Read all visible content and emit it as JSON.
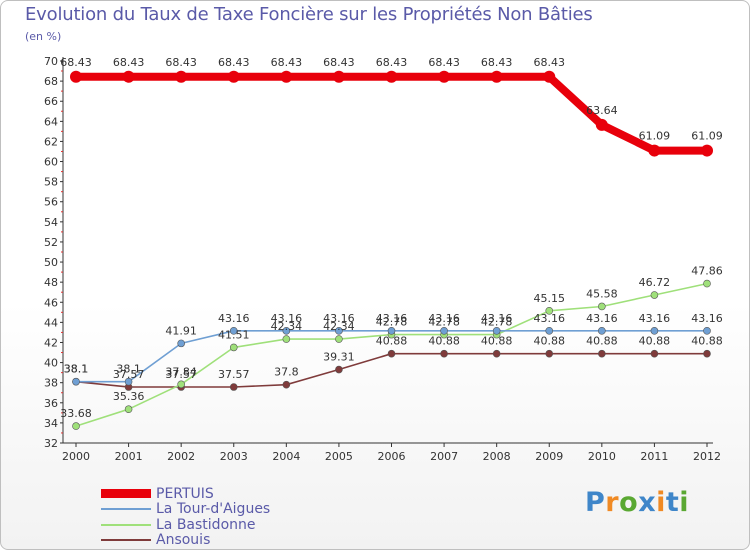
{
  "chart_data": {
    "type": "line",
    "title": "Evolution du Taux de Taxe Foncière sur les Propriétés Non Bâties",
    "subtitle": "(en %)",
    "x": [
      "2000",
      "2001",
      "2002",
      "2003",
      "2004",
      "2005",
      "2006",
      "2007",
      "2008",
      "2009",
      "2010",
      "2011",
      "2012"
    ],
    "ylim": [
      32,
      70
    ],
    "yticks": [
      32,
      34,
      36,
      38,
      40,
      42,
      44,
      46,
      48,
      50,
      52,
      54,
      56,
      58,
      60,
      62,
      64,
      66,
      68,
      70
    ],
    "grid": false,
    "legend_position": "bottom-left",
    "series": [
      {
        "name": "PERTUIS",
        "color": "#e8000b",
        "values": [
          68.43,
          68.43,
          68.43,
          68.43,
          68.43,
          68.43,
          68.43,
          68.43,
          68.43,
          68.43,
          63.64,
          61.09,
          61.09
        ],
        "labels": [
          "68.43",
          "68.43",
          "68.43",
          "68.43",
          "68.43",
          "68.43",
          "68.43",
          "68.43",
          "68.43",
          "68.43",
          "63.64",
          "61.09",
          "61.09"
        ]
      },
      {
        "name": "La Tour-d'Aigues",
        "color": "#6f9fd3",
        "values": [
          38.1,
          38.1,
          41.91,
          43.16,
          43.16,
          43.16,
          43.16,
          43.16,
          43.16,
          43.16,
          43.16,
          43.16,
          43.16
        ],
        "labels": [
          "38.1",
          "38.1",
          "41.91",
          "43.16",
          "43.16",
          "43.16",
          "43.16",
          "43.16",
          "43.16",
          "43.16",
          "43.16",
          "43.16",
          "43.16"
        ]
      },
      {
        "name": "La Bastidonne",
        "color": "#9fe07a",
        "values": [
          33.68,
          35.36,
          37.84,
          41.51,
          42.34,
          42.34,
          42.78,
          42.78,
          42.78,
          45.15,
          45.58,
          46.72,
          47.86
        ],
        "labels": [
          "33.68",
          "35.36",
          "37.84",
          "41.51",
          "42.34",
          "42.34",
          "42.78",
          "42.78",
          "42.78",
          "45.15",
          "45.58",
          "46.72",
          "47.86"
        ]
      },
      {
        "name": "Ansouis",
        "color": "#7f3b3b",
        "values": [
          38.1,
          37.57,
          37.57,
          37.57,
          37.8,
          39.31,
          40.88,
          40.88,
          40.88,
          40.88,
          40.88,
          40.88,
          40.88
        ],
        "labels": [
          "38.1",
          "37.57",
          "37.57",
          "37.57",
          "37.8",
          "39.31",
          "40.88",
          "40.88",
          "40.88",
          "40.88",
          "40.88",
          "40.88",
          "40.88"
        ]
      }
    ]
  },
  "legend": {
    "items": [
      {
        "label": "PERTUIS",
        "color": "#e8000b"
      },
      {
        "label": "La Tour-d'Aigues",
        "color": "#6f9fd3"
      },
      {
        "label": "La Bastidonne",
        "color": "#9fe07a"
      },
      {
        "label": "Ansouis",
        "color": "#7f3b3b"
      }
    ]
  },
  "logo": {
    "text": "Proxiti",
    "letter_colors": [
      "#3f86c9",
      "#f08a24",
      "#5aa832",
      "#3f86c9",
      "#f08a24",
      "#3f86c9",
      "#5aa832"
    ]
  }
}
